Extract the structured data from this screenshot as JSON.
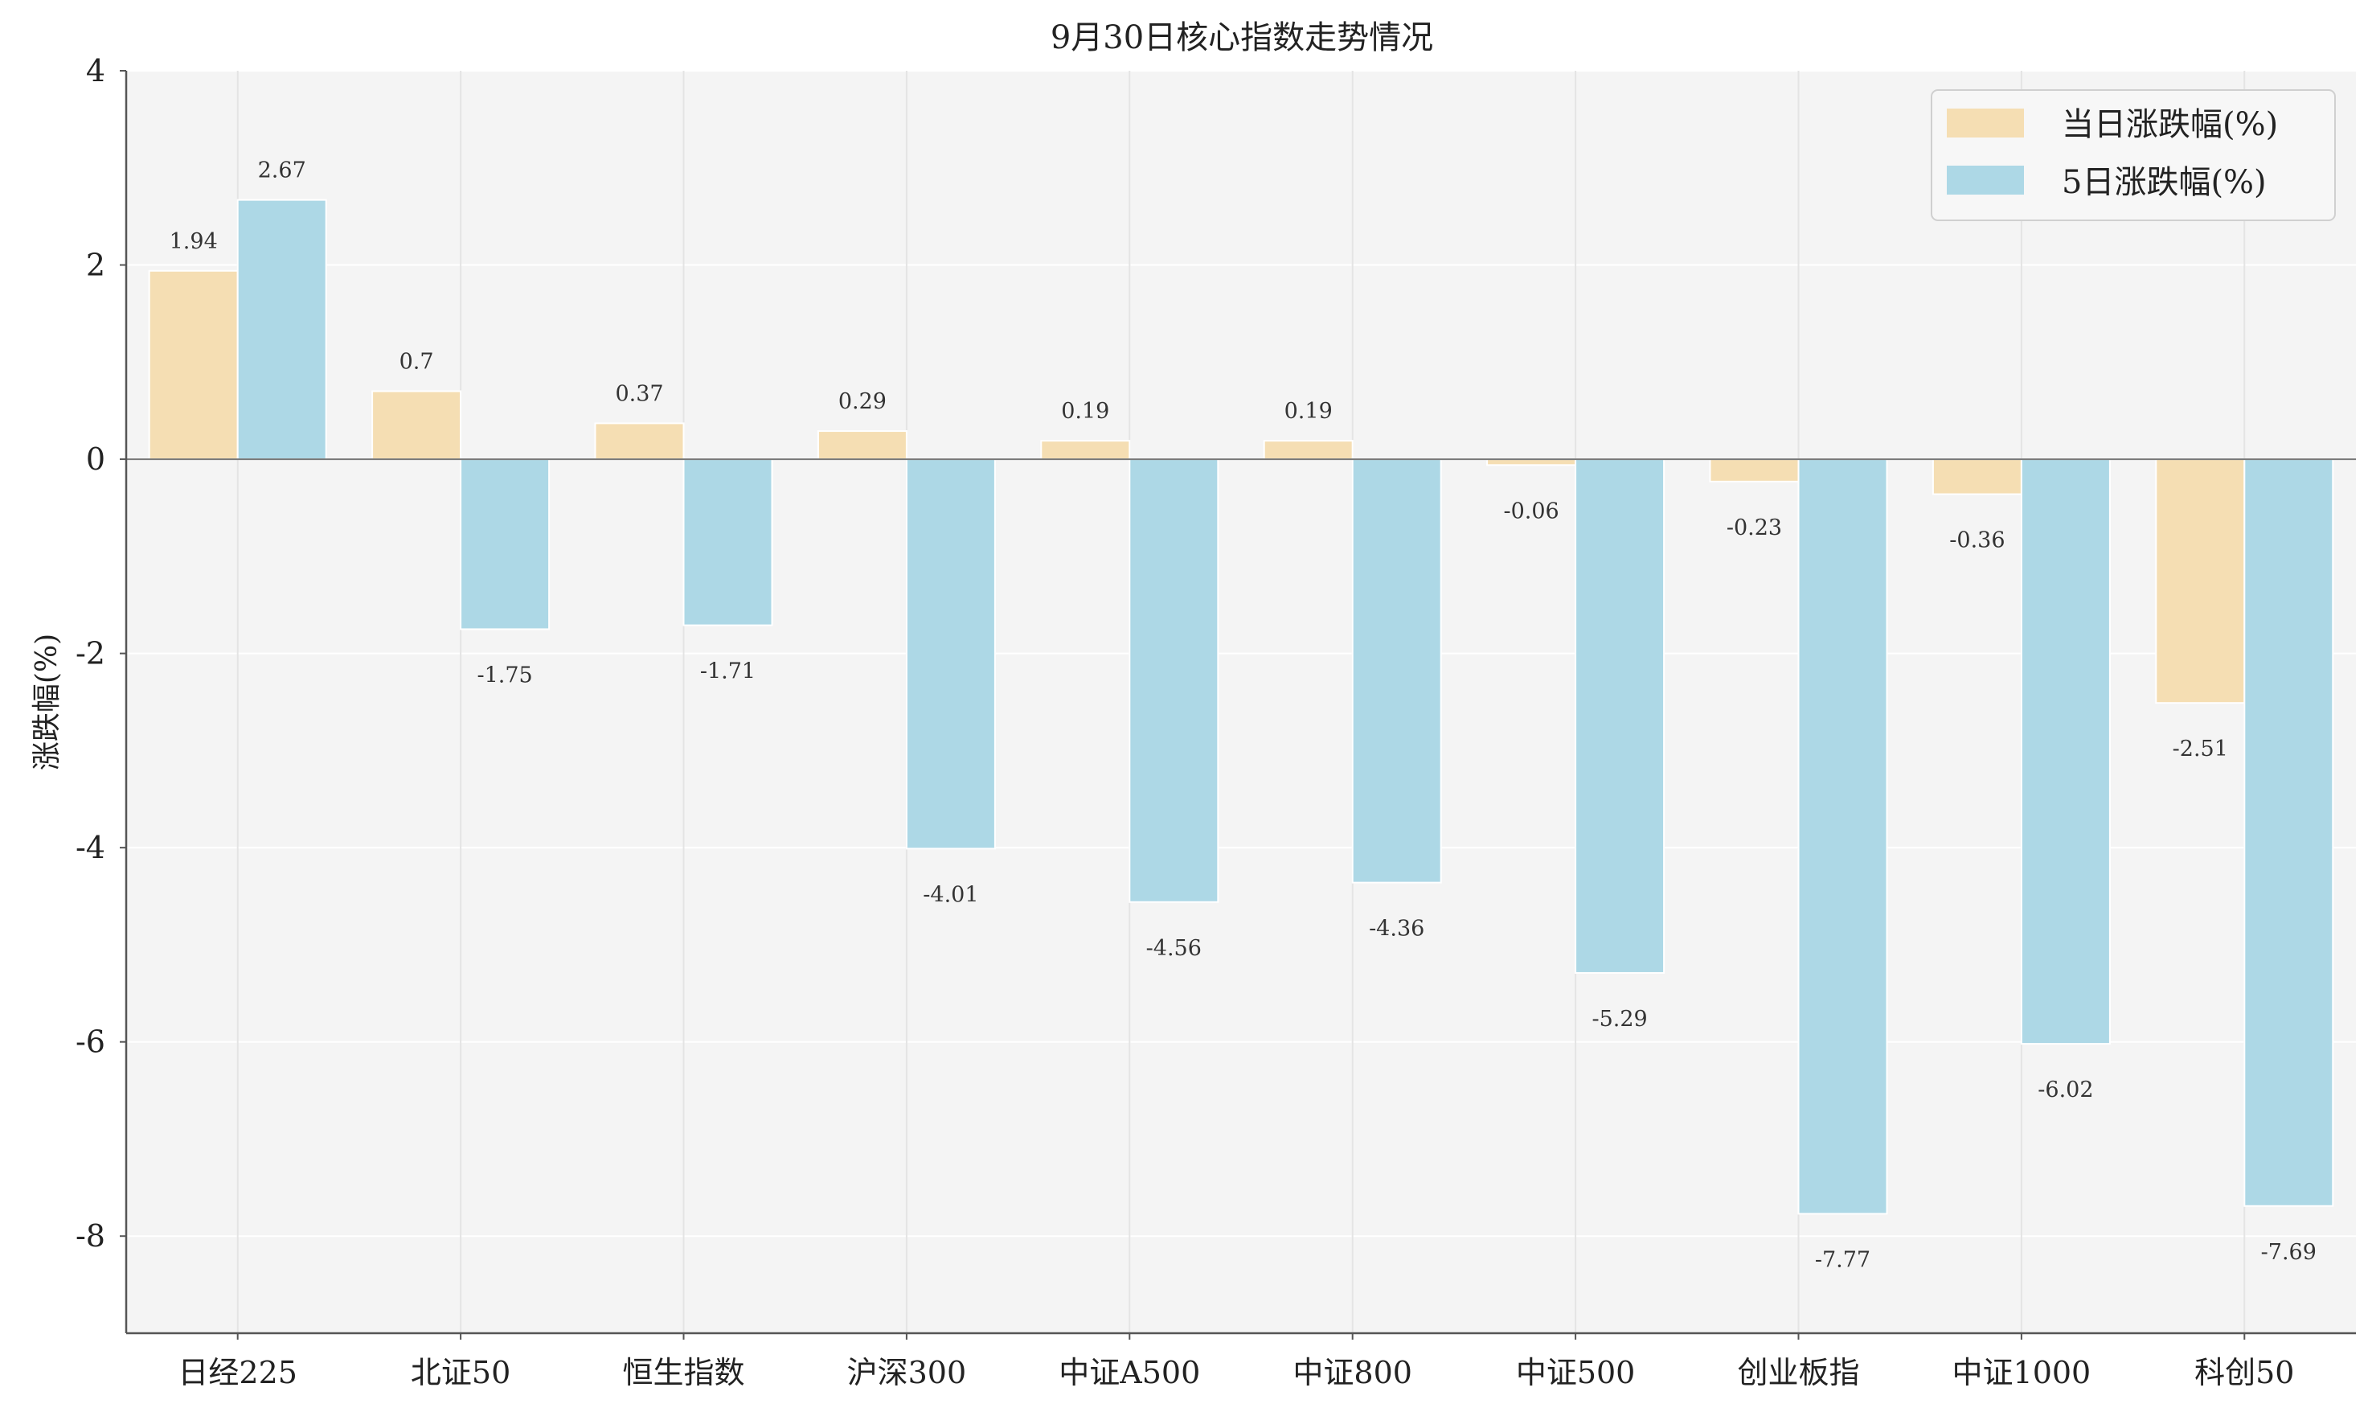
{
  "chart_data": {
    "type": "bar",
    "title": "9月30日核心指数走势情况",
    "xlabel": "",
    "ylabel": "涨跌幅(%)",
    "ylim": [
      -9,
      4
    ],
    "yticks": [
      4,
      2,
      0,
      -2,
      -4,
      -6,
      -8
    ],
    "grid": true,
    "legend_position": "top-right",
    "categories": [
      "日经225",
      "北证50",
      "恒生指数",
      "沪深300",
      "中证A500",
      "中证800",
      "中证500",
      "创业板指",
      "中证1000",
      "科创50"
    ],
    "series": [
      {
        "name": "当日涨跌幅(%)",
        "color": "#F5DEB3",
        "values": [
          1.94,
          0.7,
          0.37,
          0.29,
          0.19,
          0.19,
          -0.06,
          -0.23,
          -0.36,
          -2.51
        ],
        "labels": [
          "1.94",
          "0.7",
          "0.37",
          "0.29",
          "0.19",
          "0.19",
          "-0.06",
          "-0.23",
          "-0.36",
          "-2.51"
        ]
      },
      {
        "name": "5日涨跌幅(%)",
        "color": "#ADD8E6",
        "values": [
          2.67,
          -1.75,
          -1.71,
          -4.01,
          -4.56,
          -4.36,
          -5.29,
          -7.77,
          -6.02,
          -7.69
        ],
        "labels": [
          "2.67",
          "-1.75",
          "-1.71",
          "-4.01",
          "-4.56",
          "-4.36",
          "-5.29",
          "-7.77",
          "-6.02",
          "-7.69"
        ]
      }
    ]
  }
}
